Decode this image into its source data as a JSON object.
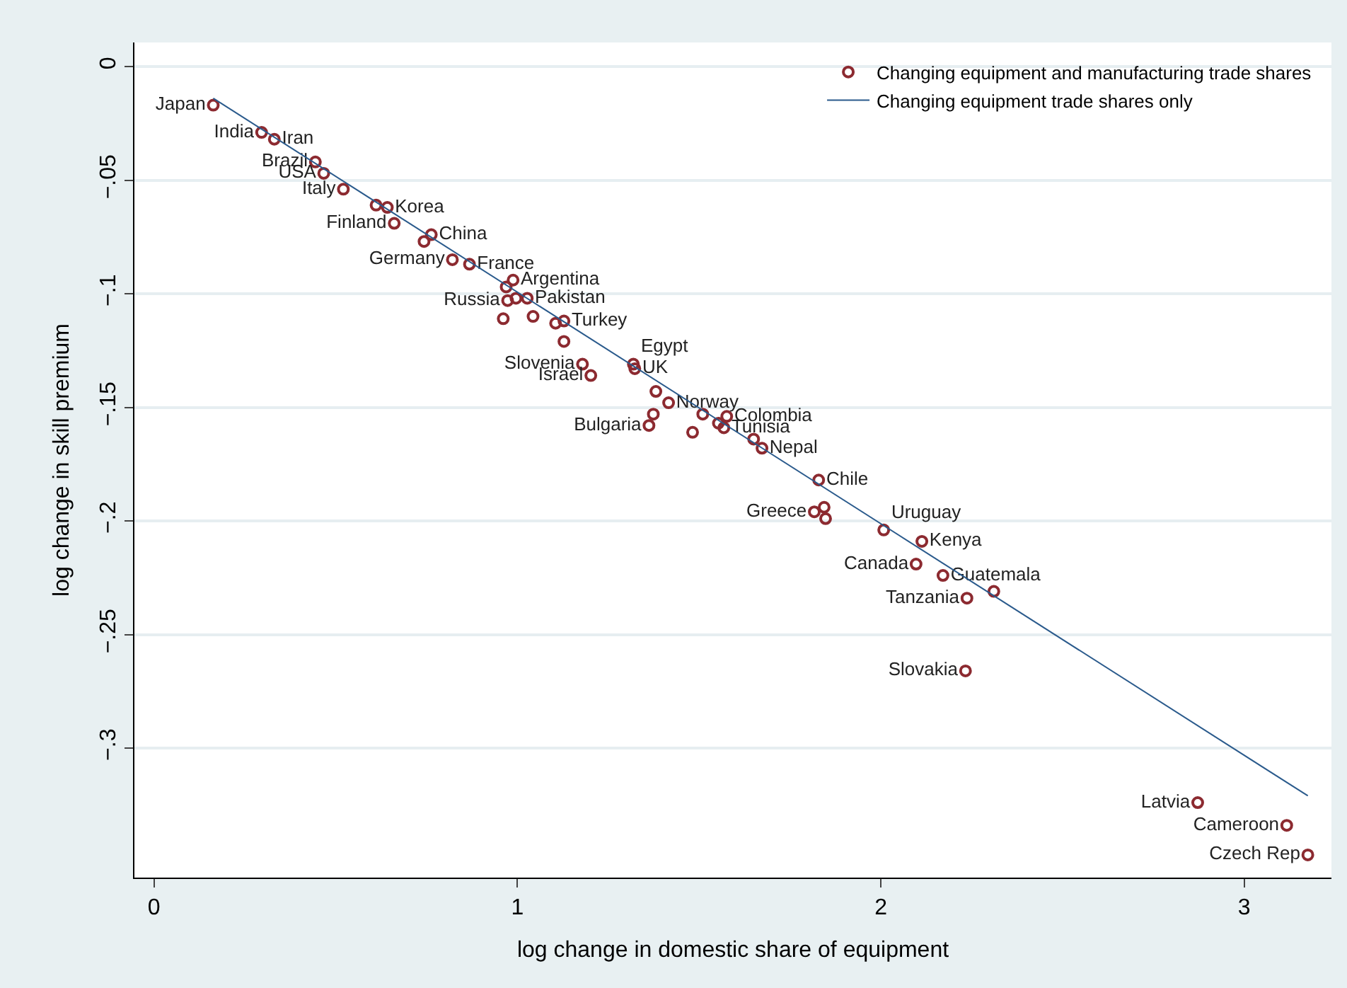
{
  "chart_data": {
    "type": "scatter",
    "xlabel": "log change in domestic share of equipment",
    "ylabel": "log change in skill premium",
    "xlim": [
      -0.054,
      3.24
    ],
    "ylim": [
      -0.357,
      0.0106
    ],
    "xticks": [
      0,
      1,
      2,
      3
    ],
    "yticks": [
      {
        "value": 0,
        "label": "0"
      },
      {
        "value": -0.05,
        "label": "−.05"
      },
      {
        "value": -0.1,
        "label": "−.1"
      },
      {
        "value": -0.15,
        "label": "−.15"
      },
      {
        "value": -0.2,
        "label": "−.2"
      },
      {
        "value": -0.25,
        "label": "−.25"
      },
      {
        "value": -0.3,
        "label": "−.3"
      }
    ],
    "grid": "y",
    "legend": "top right",
    "series": [
      {
        "name": "Changing equipment and manufacturing trade shares",
        "marker": "circle",
        "color": "#8c2a30",
        "x": [
          0.163,
          0.296,
          0.331,
          0.444,
          0.467,
          0.521,
          0.611,
          0.642,
          0.661,
          0.763,
          0.743,
          0.821,
          0.868,
          0.988,
          0.969,
          0.973,
          0.996,
          1.027,
          0.961,
          1.043,
          1.105,
          1.128,
          1.128,
          1.179,
          1.202,
          1.319,
          1.323,
          1.381,
          1.416,
          1.374,
          1.362,
          1.482,
          1.51,
          1.553,
          1.576,
          1.568,
          1.65,
          1.673,
          1.829,
          1.817,
          1.844,
          1.848,
          2.008,
          2.113,
          2.097,
          2.171,
          2.237,
          2.311,
          2.233,
          2.872,
          3.117,
          3.175
        ],
        "values": [
          -0.017,
          -0.029,
          -0.032,
          -0.042,
          -0.047,
          -0.054,
          -0.061,
          -0.062,
          -0.069,
          -0.074,
          -0.077,
          -0.085,
          -0.087,
          -0.094,
          -0.097,
          -0.103,
          -0.102,
          -0.102,
          -0.111,
          -0.11,
          -0.113,
          -0.112,
          -0.121,
          -0.131,
          -0.136,
          -0.131,
          -0.133,
          -0.143,
          -0.148,
          -0.153,
          -0.158,
          -0.161,
          -0.153,
          -0.157,
          -0.154,
          -0.159,
          -0.164,
          -0.168,
          -0.182,
          -0.196,
          -0.194,
          -0.199,
          -0.204,
          -0.209,
          -0.219,
          -0.224,
          -0.234,
          -0.231,
          -0.266,
          -0.324,
          -0.334,
          -0.347
        ],
        "value_labels": [
          "Japan",
          "India",
          "Iran",
          "Brazil",
          "USA",
          "Italy",
          null,
          "Korea",
          "Finland",
          "China",
          null,
          "Germany",
          "France",
          "Argentina",
          null,
          "Russia",
          null,
          "Pakistan",
          null,
          null,
          null,
          "Turkey",
          null,
          "Slovenia",
          "Israel",
          "Egypt",
          "UK",
          null,
          "Norway",
          null,
          "Bulgaria",
          null,
          null,
          null,
          "Colombia",
          "Tunisia",
          null,
          "Nepal",
          "Chile",
          "Greece",
          null,
          null,
          "Uruguay",
          "Kenya",
          "Canada",
          "Guatemala",
          "Tanzania",
          null,
          "Slovakia",
          "Latvia",
          "Cameroon",
          "Czech Rep"
        ]
      },
      {
        "name": "Changing equipment trade shares only",
        "type": "line",
        "marker": "none",
        "line_style": "solid",
        "color": "#2a5a8c",
        "x": [
          0.163,
          3.175
        ],
        "values": [
          -0.014,
          -0.321
        ]
      }
    ]
  }
}
